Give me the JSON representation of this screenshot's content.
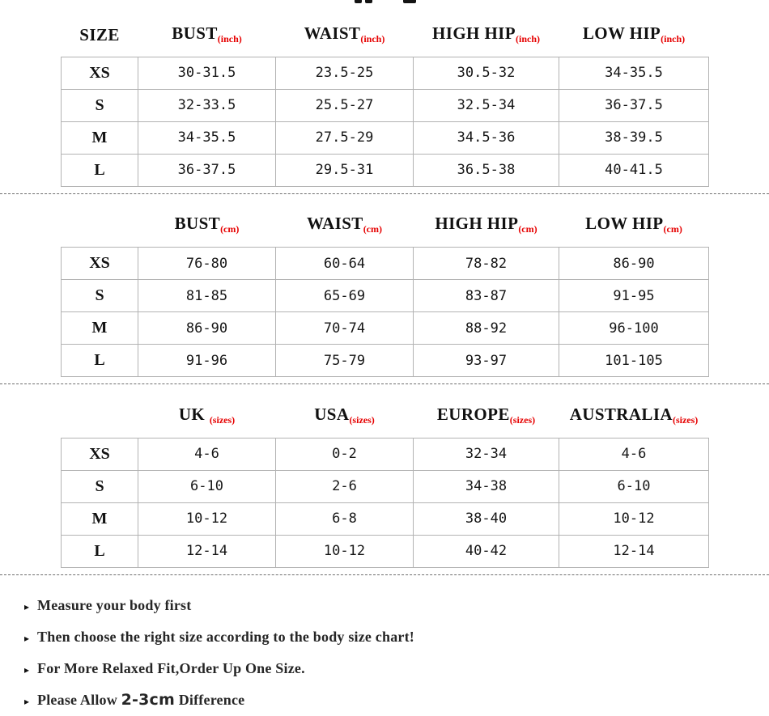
{
  "page": {
    "background": "#ffffff",
    "accent_red": "#e60000",
    "bullet_icon": "▸"
  },
  "tables": [
    {
      "name": "inches",
      "size_header": "SIZE",
      "columns": [
        {
          "label": "BUST",
          "sub": "(inch)"
        },
        {
          "label": "WAIST",
          "sub": "(inch)"
        },
        {
          "label": "HIGH HIP",
          "sub": "(inch)"
        },
        {
          "label": "LOW HIP",
          "sub": "(inch)"
        }
      ],
      "rows": [
        {
          "size": "XS",
          "values": [
            "30-31.5",
            "23.5-25",
            "30.5-32",
            "34-35.5"
          ]
        },
        {
          "size": "S",
          "values": [
            "32-33.5",
            "25.5-27",
            "32.5-34",
            "36-37.5"
          ]
        },
        {
          "size": "M",
          "values": [
            "34-35.5",
            "27.5-29",
            "34.5-36",
            "38-39.5"
          ]
        },
        {
          "size": "L",
          "values": [
            "36-37.5",
            "29.5-31",
            "36.5-38",
            "40-41.5"
          ]
        }
      ]
    },
    {
      "name": "centimeters",
      "size_header": "",
      "columns": [
        {
          "label": "BUST",
          "sub": "(cm)"
        },
        {
          "label": "WAIST",
          "sub": "(cm)"
        },
        {
          "label": "HIGH HIP",
          "sub": "(cm)"
        },
        {
          "label": "LOW HIP",
          "sub": "(cm)"
        }
      ],
      "rows": [
        {
          "size": "XS",
          "values": [
            "76-80",
            "60-64",
            "78-82",
            "86-90"
          ]
        },
        {
          "size": "S",
          "values": [
            "81-85",
            "65-69",
            "83-87",
            "91-95"
          ]
        },
        {
          "size": "M",
          "values": [
            "86-90",
            "70-74",
            "88-92",
            "96-100"
          ]
        },
        {
          "size": "L",
          "values": [
            "91-96",
            "75-79",
            "93-97",
            "101-105"
          ]
        }
      ]
    },
    {
      "name": "international-sizes",
      "size_header": "",
      "columns": [
        {
          "label": "UK ",
          "sub": "(sizes)"
        },
        {
          "label": "USA",
          "sub": "(sizes)"
        },
        {
          "label": "EUROPE",
          "sub": "(sizes)"
        },
        {
          "label": "AUSTRALIA",
          "sub": "(sizes)"
        }
      ],
      "rows": [
        {
          "size": "XS",
          "values": [
            "4-6",
            "0-2",
            "32-34",
            "4-6"
          ]
        },
        {
          "size": "S",
          "values": [
            "6-10",
            "2-6",
            "34-38",
            "6-10"
          ]
        },
        {
          "size": "M",
          "values": [
            "10-12",
            "6-8",
            "38-40",
            "10-12"
          ]
        },
        {
          "size": "L",
          "values": [
            "12-14",
            "10-12",
            "40-42",
            "12-14"
          ]
        }
      ]
    }
  ],
  "notes": [
    {
      "text": "Measure your body first"
    },
    {
      "text": "Then choose the right size according to the body size chart!"
    },
    {
      "text": "For More Relaxed Fit,Order Up One Size."
    },
    {
      "prefix": "Please Allow ",
      "highlight": "2-3cm",
      "suffix": " Difference"
    }
  ]
}
